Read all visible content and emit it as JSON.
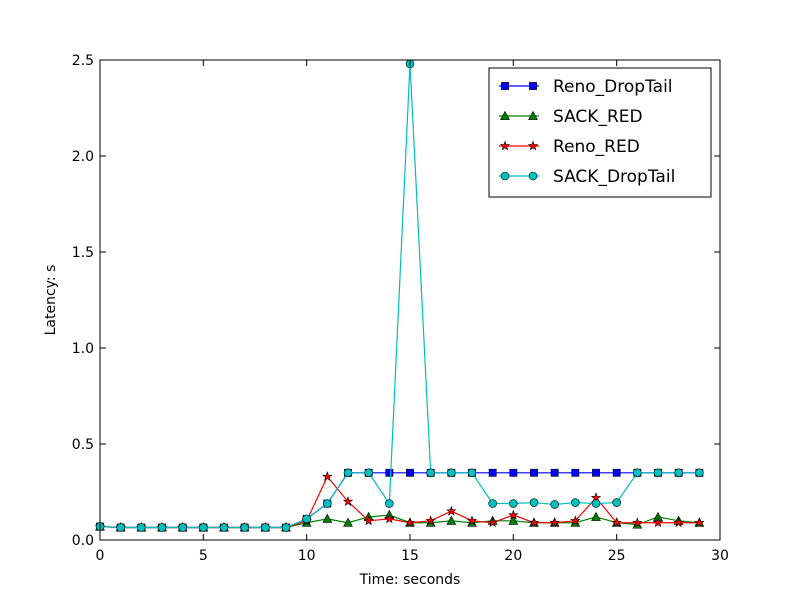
{
  "chart_data": {
    "type": "line",
    "title": "",
    "xlabel": "Time: seconds",
    "ylabel": "Latency: s",
    "xlim": [
      0,
      30
    ],
    "ylim": [
      0,
      2.5
    ],
    "xticks": [
      0,
      5,
      10,
      15,
      20,
      25,
      30
    ],
    "yticks": [
      0.0,
      0.5,
      1.0,
      1.5,
      2.0,
      2.5
    ],
    "xtick_labels": [
      "0",
      "5",
      "10",
      "15",
      "20",
      "25",
      "30"
    ],
    "ytick_labels": [
      "0.0",
      "0.5",
      "1.0",
      "1.5",
      "2.0",
      "2.5"
    ],
    "grid": false,
    "legend_position": "top-right",
    "x": [
      0,
      1,
      2,
      3,
      4,
      5,
      6,
      7,
      8,
      9,
      10,
      11,
      12,
      13,
      14,
      15,
      16,
      17,
      18,
      19,
      20,
      21,
      22,
      23,
      24,
      25,
      26,
      27,
      28,
      29
    ],
    "series": [
      {
        "name": "Reno_DropTail",
        "color": "#0000ff",
        "marker": "square",
        "values": [
          0.07,
          0.065,
          0.065,
          0.065,
          0.065,
          0.065,
          0.065,
          0.065,
          0.065,
          0.065,
          0.11,
          0.19,
          0.35,
          0.35,
          0.35,
          0.35,
          0.35,
          0.35,
          0.35,
          0.35,
          0.35,
          0.35,
          0.35,
          0.35,
          0.35,
          0.35,
          0.35,
          0.35,
          0.35,
          0.35
        ]
      },
      {
        "name": "SACK_RED",
        "color": "#008000",
        "marker": "triangle",
        "values": [
          0.07,
          0.065,
          0.065,
          0.065,
          0.065,
          0.065,
          0.065,
          0.065,
          0.065,
          0.065,
          0.09,
          0.11,
          0.09,
          0.12,
          0.13,
          0.09,
          0.09,
          0.1,
          0.09,
          0.1,
          0.1,
          0.09,
          0.09,
          0.09,
          0.12,
          0.09,
          0.08,
          0.12,
          0.1,
          0.09
        ]
      },
      {
        "name": "Reno_RED",
        "color": "#ff0000",
        "marker": "star",
        "values": [
          0.07,
          0.065,
          0.065,
          0.065,
          0.065,
          0.065,
          0.065,
          0.065,
          0.065,
          0.065,
          0.1,
          0.33,
          0.2,
          0.1,
          0.11,
          0.09,
          0.1,
          0.15,
          0.1,
          0.09,
          0.13,
          0.09,
          0.09,
          0.1,
          0.22,
          0.09,
          0.09,
          0.09,
          0.09,
          0.09
        ]
      },
      {
        "name": "SACK_DropTail",
        "color": "#00bfbf",
        "marker": "circle",
        "values": [
          0.07,
          0.065,
          0.065,
          0.065,
          0.065,
          0.065,
          0.065,
          0.065,
          0.065,
          0.065,
          0.11,
          0.19,
          0.35,
          0.35,
          0.19,
          2.48,
          0.35,
          0.35,
          0.35,
          0.19,
          0.19,
          0.195,
          0.185,
          0.195,
          0.19,
          0.195,
          0.35,
          0.35,
          0.35,
          0.35
        ]
      }
    ]
  }
}
